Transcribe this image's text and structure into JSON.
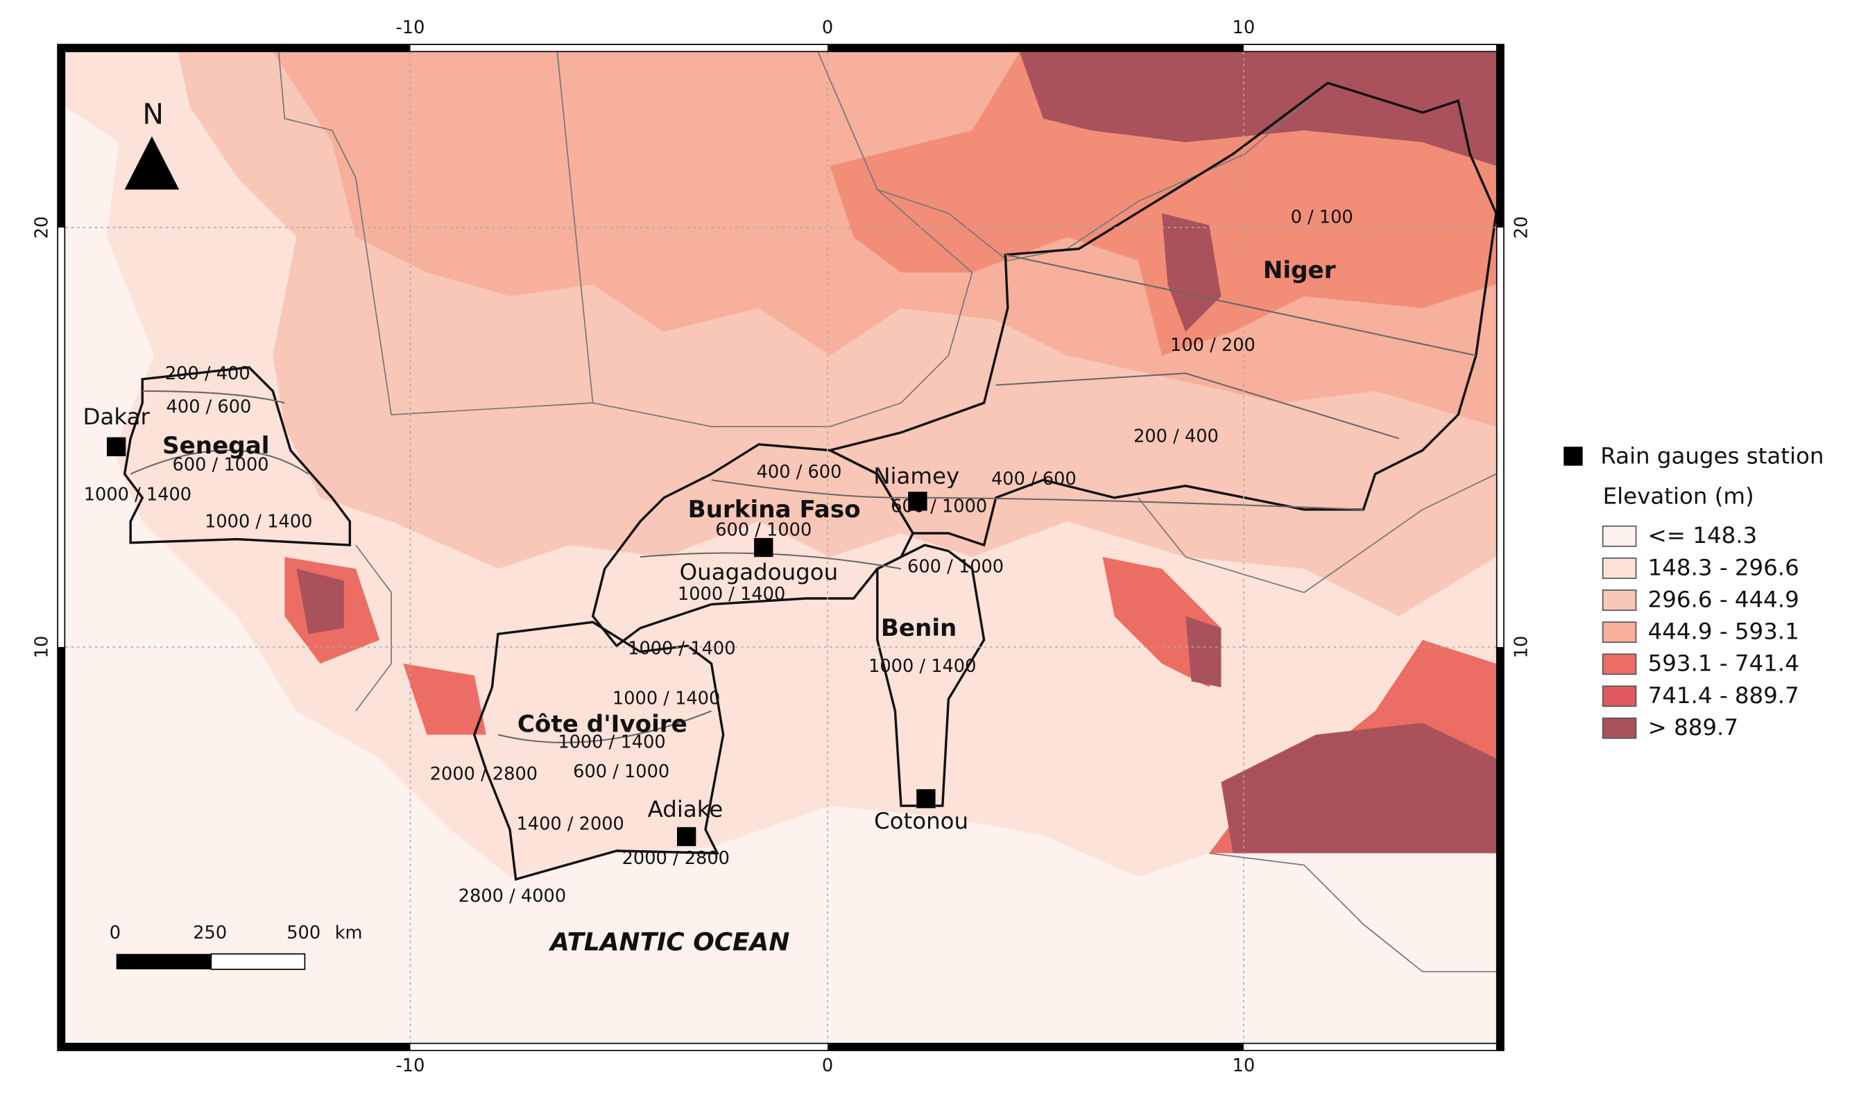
{
  "axes": {
    "longitude_ticks": [
      -10,
      0,
      10
    ],
    "latitude_ticks": [
      20,
      10
    ]
  },
  "north_label": "N",
  "ocean_label": "ATLANTIC OCEAN",
  "countries": [
    "Senegal",
    "Burkina Faso",
    "Niger",
    "Benin",
    "Côte d'Ivoire"
  ],
  "stations": [
    "Dakar",
    "Niamey",
    "Ouagadougou",
    "Cotonou",
    "Adiake"
  ],
  "isohyet_labels": [
    "200 / 400",
    "400 / 600",
    "600 / 1000",
    "1000 / 1400",
    "1000 / 1400",
    "400 / 600",
    "600 / 1000",
    "1000 / 1400",
    "600 / 1000",
    "600 / 1000",
    "400 / 600",
    "0 / 100",
    "100 / 200",
    "200 / 400",
    "1000 / 1400",
    "1000 / 1400",
    "1000 / 1400",
    "1000 / 1400",
    "600 / 1000",
    "2000 / 2800",
    "1400 / 2000",
    "2000 / 2800",
    "2800 / 4000"
  ],
  "scale_bar": {
    "ticks": [
      0,
      250,
      500
    ],
    "unit": "km"
  },
  "legend": {
    "station_label": "Rain gauges station",
    "title": "Elevation (m)",
    "classes": [
      {
        "label": "<= 148.3",
        "color": "#fdf2ee"
      },
      {
        "label": "148.3 - 296.6",
        "color": "#fce2d9"
      },
      {
        "label": "296.6 - 444.9",
        "color": "#f9c7b7"
      },
      {
        "label": "444.9 - 593.1",
        "color": "#f7b09c"
      },
      {
        "label": "593.1 - 741.4",
        "color": "#ec6d63"
      },
      {
        "label": "741.4 - 889.7",
        "color": "#df5a60"
      },
      {
        "label": "> 889.7",
        "color": "#a9525b"
      }
    ]
  }
}
